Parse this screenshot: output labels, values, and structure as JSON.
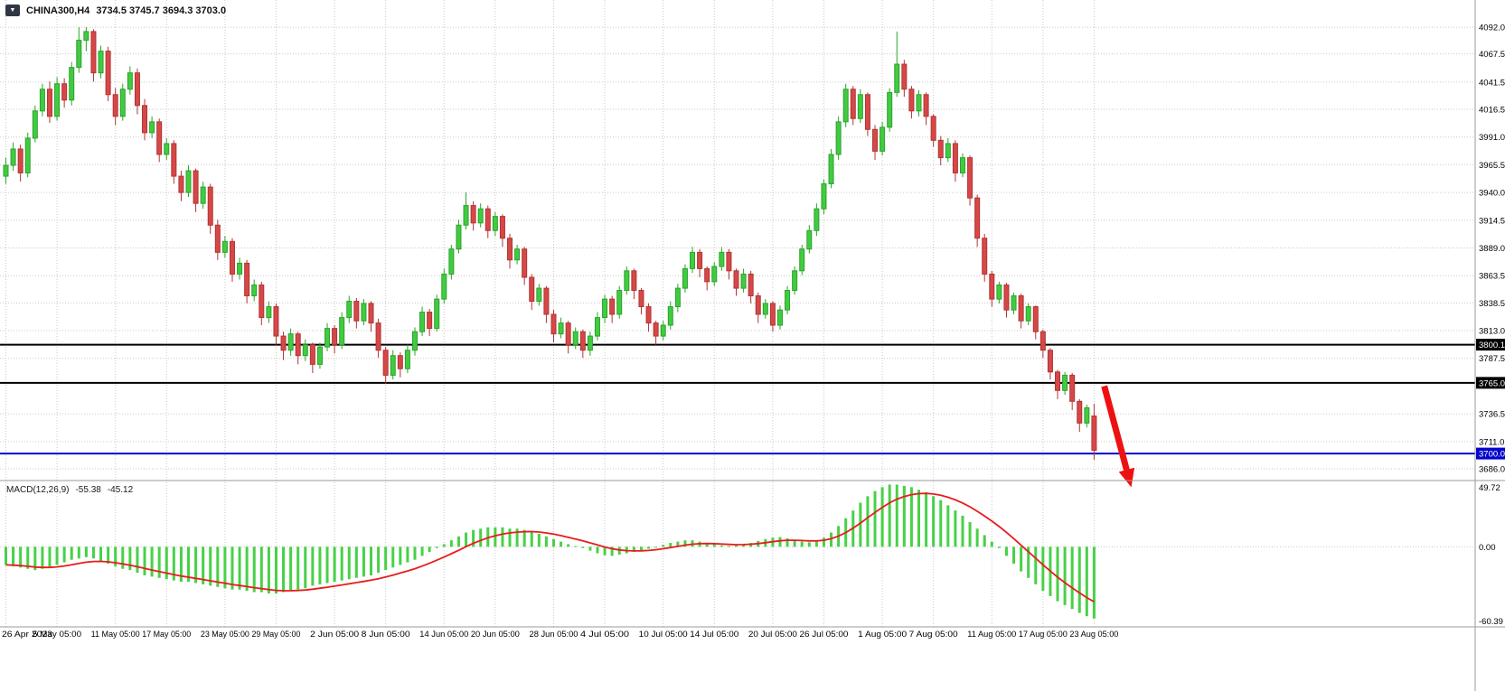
{
  "symbol_bar": {
    "expander_icon": "▼",
    "title": "CHINA300,H4",
    "ohlc_text": "3734.5 3745.7 3694.3 3703.0"
  },
  "macd_panel": {
    "label": "MACD(12,26,9)",
    "main_value": "-55.38",
    "signal_value": "-45.12"
  },
  "price_axis": {
    "ticks": [
      {
        "value": 4092.0,
        "label": "4092.0"
      },
      {
        "value": 4067.5,
        "label": "4067.5"
      },
      {
        "value": 4041.5,
        "label": "4041.5"
      },
      {
        "value": 4016.5,
        "label": "4016.5"
      },
      {
        "value": 3991.0,
        "label": "3991.0"
      },
      {
        "value": 3965.5,
        "label": "3965.5"
      },
      {
        "value": 3940.0,
        "label": "3940.0"
      },
      {
        "value": 3914.5,
        "label": "3914.5"
      },
      {
        "value": 3889.0,
        "label": "3889.0"
      },
      {
        "value": 3863.5,
        "label": "3863.5"
      },
      {
        "value": 3838.5,
        "label": "3838.5"
      },
      {
        "value": 3813.0,
        "label": "3813.0"
      },
      {
        "value": 3787.5,
        "label": "3787.5"
      },
      {
        "value": 3736.5,
        "label": "3736.5"
      },
      {
        "value": 3711.0,
        "label": "3711.0"
      },
      {
        "value": 3686.0,
        "label": "3686.0"
      }
    ],
    "tags": [
      {
        "price": 3800.1,
        "label": "3800.1",
        "bg": "#000000"
      },
      {
        "price": 3765.0,
        "label": "3765.0",
        "bg": "#000000"
      },
      {
        "price": 3700.0,
        "label": "3700.0",
        "bg": "#0404cc"
      }
    ]
  },
  "macd_axis": {
    "ticks": [
      {
        "value": 49.72,
        "label": "49.72"
      },
      {
        "value": 0,
        "label": "0.00"
      },
      {
        "value": -60.39,
        "label": "-60.39"
      }
    ]
  },
  "time_axis": {
    "labels": [
      {
        "text": "26 Apr 2023",
        "index": 0
      },
      {
        "text": "5 May 05:00",
        "index": 7
      },
      {
        "text": "11 May 05:00",
        "index": 15
      },
      {
        "text": "17 May 05:00",
        "index": 22
      },
      {
        "text": "23 May 05:00",
        "index": 30
      },
      {
        "text": "29 May 05:00",
        "index": 37
      },
      {
        "text": "2 Jun 05:00",
        "index": 45
      },
      {
        "text": "8 Jun 05:00",
        "index": 52
      },
      {
        "text": "14 Jun 05:00",
        "index": 60
      },
      {
        "text": "20 Jun 05:00",
        "index": 67
      },
      {
        "text": "28 Jun 05:00",
        "index": 75
      },
      {
        "text": "4 Jul 05:00",
        "index": 82
      },
      {
        "text": "10 Jul 05:00",
        "index": 90
      },
      {
        "text": "14 Jul 05:00",
        "index": 97
      },
      {
        "text": "20 Jul 05:00",
        "index": 105
      },
      {
        "text": "26 Jul 05:00",
        "index": 112
      },
      {
        "text": "1 Aug 05:00",
        "index": 120
      },
      {
        "text": "7 Aug 05:00",
        "index": 127
      },
      {
        "text": "11 Aug 05:00",
        "index": 135
      },
      {
        "text": "17 Aug 05:00",
        "index": 142
      },
      {
        "text": "23 Aug 05:00",
        "index": 149
      }
    ]
  },
  "colors": {
    "background": "#ffffff",
    "grid": "#c9c9c9",
    "separator": "#9a9a9a",
    "axis_text": "#000000",
    "bull": "#42cb42",
    "bull_border": "#2aa42a",
    "bear": "#d64848",
    "bear_border": "#b23333",
    "macd_hist": "#47d147",
    "macd_signal": "#e81c1c"
  },
  "chart_data": {
    "type": "candlestick",
    "symbol": "CHINA300",
    "timeframe": "H4",
    "grid": "dotted",
    "price_range": [
      3676,
      4117
    ],
    "candles": [
      [
        3955,
        3972,
        3948,
        3965
      ],
      [
        3965,
        3986,
        3960,
        3980
      ],
      [
        3980,
        3984,
        3950,
        3958
      ],
      [
        3958,
        3995,
        3954,
        3990
      ],
      [
        3990,
        4020,
        3986,
        4015
      ],
      [
        4015,
        4040,
        4010,
        4035
      ],
      [
        4035,
        4042,
        4004,
        4010
      ],
      [
        4010,
        4046,
        4006,
        4040
      ],
      [
        4040,
        4045,
        4018,
        4025
      ],
      [
        4025,
        4060,
        4020,
        4055
      ],
      [
        4055,
        4092,
        4050,
        4080
      ],
      [
        4080,
        4092,
        4070,
        4088
      ],
      [
        4088,
        4090,
        4042,
        4050
      ],
      [
        4050,
        4075,
        4045,
        4070
      ],
      [
        4070,
        4074,
        4024,
        4030
      ],
      [
        4030,
        4036,
        4002,
        4010
      ],
      [
        4010,
        4040,
        4006,
        4035
      ],
      [
        4035,
        4056,
        4030,
        4050
      ],
      [
        4050,
        4054,
        4012,
        4020
      ],
      [
        4020,
        4026,
        3988,
        3995
      ],
      [
        3995,
        4010,
        3990,
        4005
      ],
      [
        4005,
        4008,
        3968,
        3975
      ],
      [
        3975,
        3990,
        3970,
        3985
      ],
      [
        3985,
        3988,
        3948,
        3955
      ],
      [
        3955,
        3960,
        3932,
        3940
      ],
      [
        3940,
        3965,
        3936,
        3960
      ],
      [
        3960,
        3962,
        3922,
        3930
      ],
      [
        3930,
        3950,
        3925,
        3945
      ],
      [
        3945,
        3948,
        3902,
        3910
      ],
      [
        3910,
        3915,
        3878,
        3885
      ],
      [
        3885,
        3900,
        3880,
        3895
      ],
      [
        3895,
        3898,
        3858,
        3865
      ],
      [
        3865,
        3880,
        3860,
        3875
      ],
      [
        3875,
        3878,
        3838,
        3845
      ],
      [
        3845,
        3860,
        3840,
        3855
      ],
      [
        3855,
        3858,
        3818,
        3825
      ],
      [
        3825,
        3840,
        3820,
        3835
      ],
      [
        3835,
        3838,
        3800,
        3808
      ],
      [
        3808,
        3812,
        3786,
        3795
      ],
      [
        3795,
        3815,
        3790,
        3810
      ],
      [
        3810,
        3812,
        3782,
        3790
      ],
      [
        3790,
        3805,
        3785,
        3800
      ],
      [
        3800,
        3802,
        3774,
        3782
      ],
      [
        3782,
        3802,
        3778,
        3798
      ],
      [
        3798,
        3820,
        3794,
        3815
      ],
      [
        3815,
        3818,
        3792,
        3800
      ],
      [
        3800,
        3830,
        3796,
        3825
      ],
      [
        3825,
        3845,
        3820,
        3840
      ],
      [
        3840,
        3843,
        3815,
        3822
      ],
      [
        3822,
        3842,
        3818,
        3838
      ],
      [
        3838,
        3840,
        3812,
        3820
      ],
      [
        3820,
        3824,
        3788,
        3795
      ],
      [
        3795,
        3798,
        3764,
        3772
      ],
      [
        3772,
        3795,
        3768,
        3790
      ],
      [
        3790,
        3793,
        3770,
        3778
      ],
      [
        3778,
        3800,
        3774,
        3795
      ],
      [
        3795,
        3816,
        3790,
        3812
      ],
      [
        3812,
        3835,
        3808,
        3830
      ],
      [
        3830,
        3833,
        3808,
        3815
      ],
      [
        3815,
        3846,
        3812,
        3842
      ],
      [
        3842,
        3870,
        3838,
        3865
      ],
      [
        3865,
        3892,
        3860,
        3888
      ],
      [
        3888,
        3915,
        3884,
        3910
      ],
      [
        3910,
        3940,
        3906,
        3928
      ],
      [
        3928,
        3932,
        3905,
        3912
      ],
      [
        3912,
        3930,
        3908,
        3925
      ],
      [
        3925,
        3928,
        3898,
        3905
      ],
      [
        3905,
        3922,
        3900,
        3918
      ],
      [
        3918,
        3920,
        3890,
        3898
      ],
      [
        3898,
        3902,
        3870,
        3878
      ],
      [
        3878,
        3892,
        3874,
        3888
      ],
      [
        3888,
        3890,
        3855,
        3862
      ],
      [
        3862,
        3865,
        3832,
        3840
      ],
      [
        3840,
        3856,
        3836,
        3852
      ],
      [
        3852,
        3854,
        3820,
        3828
      ],
      [
        3828,
        3832,
        3802,
        3810
      ],
      [
        3810,
        3825,
        3806,
        3820
      ],
      [
        3820,
        3822,
        3792,
        3800
      ],
      [
        3800,
        3816,
        3796,
        3812
      ],
      [
        3812,
        3814,
        3788,
        3795
      ],
      [
        3795,
        3812,
        3790,
        3808
      ],
      [
        3808,
        3830,
        3804,
        3825
      ],
      [
        3825,
        3846,
        3820,
        3842
      ],
      [
        3842,
        3845,
        3820,
        3828
      ],
      [
        3828,
        3854,
        3824,
        3850
      ],
      [
        3850,
        3872,
        3846,
        3868
      ],
      [
        3868,
        3870,
        3842,
        3850
      ],
      [
        3850,
        3852,
        3828,
        3835
      ],
      [
        3835,
        3838,
        3812,
        3820
      ],
      [
        3820,
        3822,
        3800,
        3808
      ],
      [
        3808,
        3822,
        3804,
        3818
      ],
      [
        3818,
        3840,
        3814,
        3835
      ],
      [
        3835,
        3856,
        3830,
        3852
      ],
      [
        3852,
        3874,
        3848,
        3870
      ],
      [
        3870,
        3890,
        3866,
        3885
      ],
      [
        3885,
        3888,
        3862,
        3870
      ],
      [
        3870,
        3872,
        3850,
        3858
      ],
      [
        3858,
        3876,
        3854,
        3872
      ],
      [
        3872,
        3890,
        3868,
        3885
      ],
      [
        3885,
        3888,
        3860,
        3868
      ],
      [
        3868,
        3870,
        3845,
        3852
      ],
      [
        3852,
        3870,
        3848,
        3865
      ],
      [
        3865,
        3868,
        3838,
        3845
      ],
      [
        3845,
        3848,
        3820,
        3828
      ],
      [
        3828,
        3842,
        3824,
        3838
      ],
      [
        3838,
        3840,
        3812,
        3818
      ],
      [
        3818,
        3836,
        3814,
        3832
      ],
      [
        3832,
        3854,
        3828,
        3850
      ],
      [
        3850,
        3872,
        3846,
        3868
      ],
      [
        3868,
        3892,
        3864,
        3888
      ],
      [
        3888,
        3910,
        3884,
        3905
      ],
      [
        3905,
        3930,
        3900,
        3925
      ],
      [
        3925,
        3952,
        3920,
        3948
      ],
      [
        3948,
        3980,
        3944,
        3975
      ],
      [
        3975,
        4010,
        3970,
        4005
      ],
      [
        4005,
        4040,
        4000,
        4035
      ],
      [
        4035,
        4038,
        4002,
        4008
      ],
      [
        4008,
        4035,
        4004,
        4030
      ],
      [
        4030,
        4032,
        3992,
        3998
      ],
      [
        3998,
        4002,
        3970,
        3978
      ],
      [
        3978,
        4005,
        3974,
        4000
      ],
      [
        4000,
        4036,
        3996,
        4032
      ],
      [
        4032,
        4088,
        4028,
        4058
      ],
      [
        4058,
        4062,
        4028,
        4035
      ],
      [
        4035,
        4038,
        4008,
        4015
      ],
      [
        4015,
        4034,
        4010,
        4030
      ],
      [
        4030,
        4032,
        4002,
        4010
      ],
      [
        4010,
        4012,
        3982,
        3988
      ],
      [
        3988,
        3992,
        3965,
        3972
      ],
      [
        3972,
        3990,
        3968,
        3985
      ],
      [
        3985,
        3988,
        3950,
        3958
      ],
      [
        3958,
        3976,
        3954,
        3972
      ],
      [
        3972,
        3974,
        3928,
        3935
      ],
      [
        3935,
        3938,
        3890,
        3898
      ],
      [
        3898,
        3902,
        3858,
        3865
      ],
      [
        3865,
        3868,
        3835,
        3842
      ],
      [
        3842,
        3858,
        3838,
        3855
      ],
      [
        3855,
        3857,
        3825,
        3832
      ],
      [
        3832,
        3848,
        3828,
        3845
      ],
      [
        3845,
        3847,
        3815,
        3822
      ],
      [
        3822,
        3838,
        3818,
        3835
      ],
      [
        3835,
        3836,
        3805,
        3812
      ],
      [
        3812,
        3814,
        3788,
        3795
      ],
      [
        3795,
        3797,
        3768,
        3775
      ],
      [
        3775,
        3777,
        3750,
        3758
      ],
      [
        3758,
        3775,
        3754,
        3772
      ],
      [
        3772,
        3774,
        3740,
        3748
      ],
      [
        3748,
        3750,
        3720,
        3728
      ],
      [
        3728,
        3745,
        3724,
        3742
      ],
      [
        3734.5,
        3745.7,
        3694.3,
        3703.0
      ]
    ],
    "levels": [
      {
        "price": 3800.1,
        "color": "#000000",
        "width": 2
      },
      {
        "price": 3765.0,
        "color": "#000000",
        "width": 2
      },
      {
        "price": 3700.0,
        "color": "#0404cc",
        "width": 2
      }
    ],
    "annotation_arrow": {
      "from_index": 150.7,
      "from_price": 3762,
      "to_index": 154.4,
      "to_price": 3669,
      "color": "#ee1111"
    },
    "macd": {
      "params": "12,26,9",
      "range": [
        -60.39,
        49.72
      ],
      "signal_ema_period": 9,
      "histogram": [
        -14,
        -15,
        -16,
        -17,
        -18,
        -17,
        -16,
        -14,
        -12,
        -10,
        -9,
        -8,
        -9,
        -11,
        -13,
        -15,
        -17,
        -18,
        -20,
        -22,
        -23,
        -24,
        -25,
        -26,
        -27,
        -27,
        -28,
        -29,
        -30,
        -31,
        -32,
        -33,
        -33,
        -34,
        -35,
        -35,
        -36,
        -36,
        -35,
        -34,
        -33,
        -32,
        -30,
        -29,
        -28,
        -27,
        -26,
        -25,
        -24,
        -23,
        -22,
        -20,
        -18,
        -16,
        -14,
        -12,
        -10,
        -7,
        -4,
        -1,
        2,
        5,
        8,
        11,
        13,
        14,
        15,
        15,
        15,
        14,
        14,
        13,
        12,
        10,
        8,
        6,
        4,
        2,
        0.5,
        -1,
        -3,
        -5,
        -6.5,
        -7,
        -6,
        -5,
        -4,
        -3,
        -1.5,
        0,
        1.5,
        3,
        4,
        5,
        5,
        4,
        3,
        2,
        1,
        0.5,
        1,
        2,
        3,
        4.5,
        6,
        7,
        7.5,
        6.5,
        5,
        4,
        3.5,
        4.5,
        7,
        11,
        16,
        22,
        28,
        34,
        39,
        43,
        46,
        48,
        48,
        47,
        46,
        44,
        42,
        39,
        36,
        32,
        28,
        24,
        19,
        14,
        9,
        4,
        -1,
        -7,
        -13,
        -19,
        -24,
        -29,
        -34,
        -38,
        -42,
        -45,
        -48,
        -51,
        -53.5,
        -55.38
      ]
    }
  }
}
